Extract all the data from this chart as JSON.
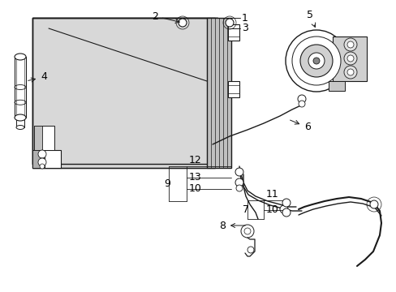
{
  "bg_color": "#ffffff",
  "lc": "#1a1a1a",
  "box_bg": "#d8d8d8",
  "fig_w": 4.89,
  "fig_h": 3.6,
  "dpi": 100
}
